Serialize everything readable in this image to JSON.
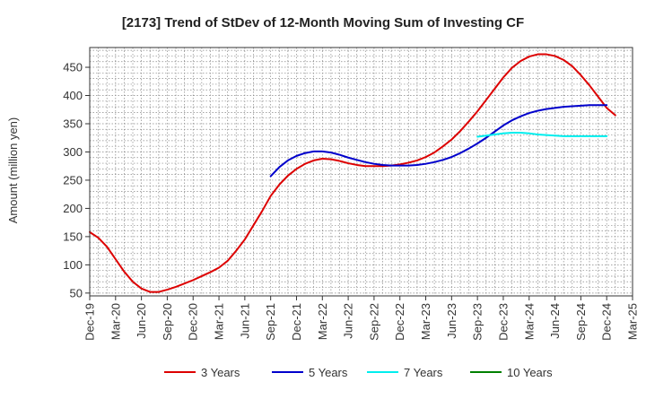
{
  "chart_data": {
    "type": "line",
    "title": "[2173]  Trend of StDev of 12-Month Moving Sum of Investing CF",
    "ylabel": "Amount (million yen)",
    "xlabel": "",
    "ylim": [
      45,
      485
    ],
    "yticks": [
      50,
      100,
      150,
      200,
      250,
      300,
      350,
      400,
      450
    ],
    "xlim": [
      "2019-12",
      "2025-03"
    ],
    "xticks": [
      "Dec-19",
      "Mar-20",
      "Jun-20",
      "Sep-20",
      "Dec-20",
      "Mar-21",
      "Jun-21",
      "Sep-21",
      "Dec-21",
      "Mar-22",
      "Jun-22",
      "Sep-22",
      "Dec-22",
      "Mar-23",
      "Jun-23",
      "Sep-23",
      "Dec-23",
      "Mar-24",
      "Jun-24",
      "Sep-24",
      "Dec-24",
      "Mar-25"
    ],
    "grid": true,
    "legend_position": "bottom",
    "series": [
      {
        "name": "3 Years",
        "color": "#dd0000",
        "points": [
          [
            "2019-12",
            158
          ],
          [
            "2020-01",
            148
          ],
          [
            "2020-02",
            132
          ],
          [
            "2020-03",
            110
          ],
          [
            "2020-04",
            88
          ],
          [
            "2020-05",
            70
          ],
          [
            "2020-06",
            58
          ],
          [
            "2020-07",
            52
          ],
          [
            "2020-08",
            52
          ],
          [
            "2020-09",
            56
          ],
          [
            "2020-10",
            61
          ],
          [
            "2020-11",
            67
          ],
          [
            "2020-12",
            73
          ],
          [
            "2021-01",
            80
          ],
          [
            "2021-02",
            87
          ],
          [
            "2021-03",
            95
          ],
          [
            "2021-04",
            107
          ],
          [
            "2021-05",
            125
          ],
          [
            "2021-06",
            145
          ],
          [
            "2021-07",
            170
          ],
          [
            "2021-08",
            195
          ],
          [
            "2021-09",
            222
          ],
          [
            "2021-10",
            242
          ],
          [
            "2021-11",
            258
          ],
          [
            "2021-12",
            270
          ],
          [
            "2022-01",
            279
          ],
          [
            "2022-02",
            285
          ],
          [
            "2022-03",
            288
          ],
          [
            "2022-04",
            287
          ],
          [
            "2022-05",
            284
          ],
          [
            "2022-06",
            280
          ],
          [
            "2022-07",
            277
          ],
          [
            "2022-08",
            275
          ],
          [
            "2022-09",
            275
          ],
          [
            "2022-10",
            275
          ],
          [
            "2022-11",
            276
          ],
          [
            "2022-12",
            278
          ],
          [
            "2023-01",
            281
          ],
          [
            "2023-02",
            285
          ],
          [
            "2023-03",
            291
          ],
          [
            "2023-04",
            299
          ],
          [
            "2023-05",
            310
          ],
          [
            "2023-06",
            322
          ],
          [
            "2023-07",
            337
          ],
          [
            "2023-08",
            354
          ],
          [
            "2023-09",
            372
          ],
          [
            "2023-10",
            392
          ],
          [
            "2023-11",
            412
          ],
          [
            "2023-12",
            432
          ],
          [
            "2024-01",
            449
          ],
          [
            "2024-02",
            461
          ],
          [
            "2024-03",
            469
          ],
          [
            "2024-04",
            473
          ],
          [
            "2024-05",
            473
          ],
          [
            "2024-06",
            470
          ],
          [
            "2024-07",
            463
          ],
          [
            "2024-08",
            452
          ],
          [
            "2024-09",
            436
          ],
          [
            "2024-10",
            418
          ],
          [
            "2024-11",
            398
          ],
          [
            "2024-12",
            378
          ],
          [
            "2025-01",
            365
          ]
        ]
      },
      {
        "name": "5 Years",
        "color": "#0000cc",
        "points": [
          [
            "2021-09",
            257
          ],
          [
            "2021-10",
            273
          ],
          [
            "2021-11",
            285
          ],
          [
            "2021-12",
            293
          ],
          [
            "2022-01",
            298
          ],
          [
            "2022-02",
            301
          ],
          [
            "2022-03",
            301
          ],
          [
            "2022-04",
            299
          ],
          [
            "2022-05",
            295
          ],
          [
            "2022-06",
            290
          ],
          [
            "2022-07",
            286
          ],
          [
            "2022-08",
            282
          ],
          [
            "2022-09",
            279
          ],
          [
            "2022-10",
            277
          ],
          [
            "2022-11",
            276
          ],
          [
            "2022-12",
            276
          ],
          [
            "2023-01",
            276
          ],
          [
            "2023-02",
            277
          ],
          [
            "2023-03",
            279
          ],
          [
            "2023-04",
            282
          ],
          [
            "2023-05",
            286
          ],
          [
            "2023-06",
            291
          ],
          [
            "2023-07",
            298
          ],
          [
            "2023-08",
            306
          ],
          [
            "2023-09",
            315
          ],
          [
            "2023-10",
            325
          ],
          [
            "2023-11",
            336
          ],
          [
            "2023-12",
            347
          ],
          [
            "2024-01",
            356
          ],
          [
            "2024-02",
            363
          ],
          [
            "2024-03",
            369
          ],
          [
            "2024-04",
            373
          ],
          [
            "2024-05",
            376
          ],
          [
            "2024-06",
            378
          ],
          [
            "2024-07",
            380
          ],
          [
            "2024-08",
            381
          ],
          [
            "2024-09",
            382
          ],
          [
            "2024-10",
            383
          ],
          [
            "2024-11",
            383
          ],
          [
            "2024-12",
            383
          ]
        ]
      },
      {
        "name": "7 Years",
        "color": "#00eeee",
        "points": [
          [
            "2023-09",
            327
          ],
          [
            "2023-10",
            329
          ],
          [
            "2023-11",
            331
          ],
          [
            "2023-12",
            333
          ],
          [
            "2024-01",
            334
          ],
          [
            "2024-02",
            334
          ],
          [
            "2024-03",
            333
          ],
          [
            "2024-04",
            331
          ],
          [
            "2024-05",
            330
          ],
          [
            "2024-06",
            329
          ],
          [
            "2024-07",
            328
          ],
          [
            "2024-08",
            328
          ],
          [
            "2024-09",
            328
          ],
          [
            "2024-10",
            328
          ],
          [
            "2024-11",
            328
          ],
          [
            "2024-12",
            328
          ]
        ]
      },
      {
        "name": "10 Years",
        "color": "#008000",
        "points": []
      }
    ]
  }
}
